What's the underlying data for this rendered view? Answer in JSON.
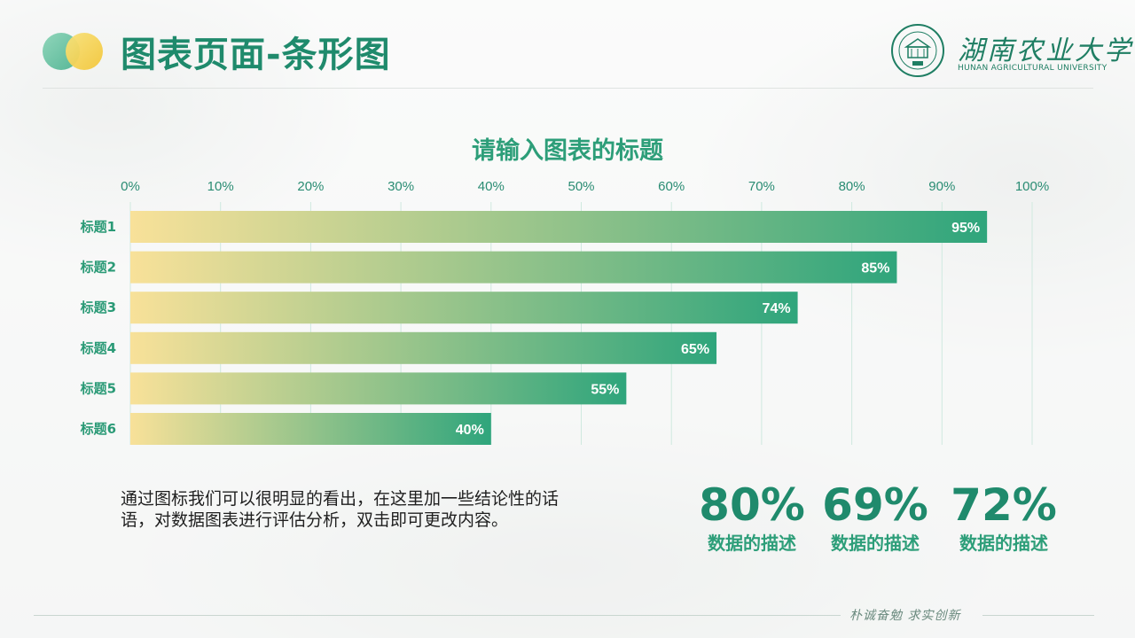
{
  "header": {
    "title": "图表页面-条形图",
    "logo_cn": "湖南农业大学",
    "logo_en": "HUNAN AGRICULTURAL UNIVERSITY"
  },
  "chart_title": "请输入图表的标题",
  "chart_data": {
    "type": "bar",
    "orientation": "horizontal",
    "categories": [
      "标题1",
      "标题2",
      "标题3",
      "标题4",
      "标题5",
      "标题6"
    ],
    "values": [
      95,
      85,
      74,
      65,
      55,
      40
    ],
    "value_labels": [
      "95%",
      "85%",
      "74%",
      "65%",
      "55%",
      "40%"
    ],
    "ticks": [
      "0%",
      "10%",
      "20%",
      "30%",
      "40%",
      "50%",
      "60%",
      "70%",
      "80%",
      "90%",
      "100%"
    ],
    "xlim": [
      0,
      100
    ],
    "grid": true,
    "axis_position": "top",
    "colors": {
      "bar_start": "#f8e199",
      "bar_end": "#2fa57c",
      "grid": "#cfe9df",
      "tick": "#2a8c73",
      "category": "#2a9a76",
      "label": "#ffffff"
    }
  },
  "description": "通过图标我们可以很明显的看出，在这里加一些结论性的话语，对数据图表进行评估分析，双击即可更改内容。",
  "stats": [
    {
      "value": "80%",
      "label": "数据的描述"
    },
    {
      "value": "69%",
      "label": "数据的描述"
    },
    {
      "value": "72%",
      "label": "数据的描述"
    }
  ],
  "footer": {
    "motto": "朴诚奋勉  求实创新"
  }
}
